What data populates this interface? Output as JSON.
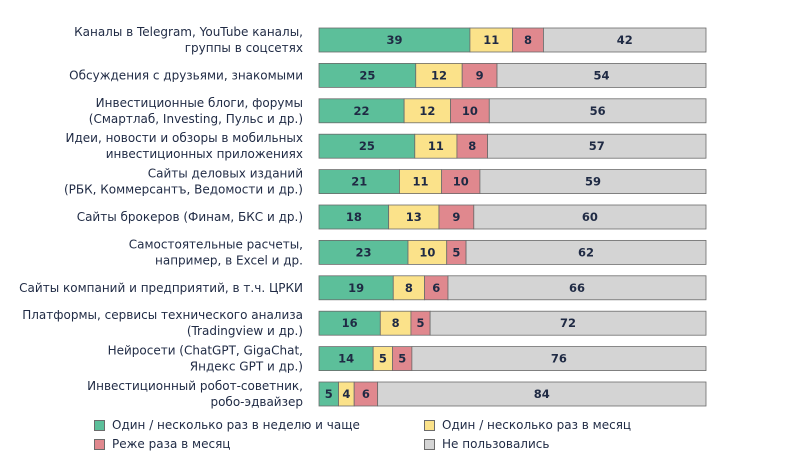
{
  "chart_data": {
    "type": "bar",
    "orientation": "horizontal",
    "stacked": true,
    "normalized": true,
    "categories": [
      [
        "Каналы в Telegram, YouTube каналы,",
        "группы в соцсетях"
      ],
      [
        "Обсуждения с друзьями, знакомыми"
      ],
      [
        "Инвестиционные блоги, форумы",
        "(Смартлаб, Investing, Пульс и др.)"
      ],
      [
        "Идеи, новости и обзоры в мобильных",
        "инвестиционных приложениях"
      ],
      [
        "Сайты деловых изданий",
        "(РБК, Коммерсантъ, Ведомости и др.)"
      ],
      [
        "Сайты брокеров (Финам, БКС и др.)"
      ],
      [
        "Самостоятельные расчеты,",
        "например, в Excel и др."
      ],
      [
        "Сайты компаний и предприятий, в т.ч. ЦРКИ"
      ],
      [
        "Платформы, сервисы технического анализа",
        "(Tradingview и др.)"
      ],
      [
        "Нейросети (ChatGPT, GigaChat,",
        "Яндекс GPT и др.)"
      ],
      [
        "Инвестиционный робот-советник,",
        "робо-эдвайзер"
      ]
    ],
    "series": [
      {
        "name": "Один / несколько раз в неделю и чаще",
        "color": "#5cbf9a",
        "values": [
          39,
          25,
          22,
          25,
          21,
          18,
          23,
          19,
          16,
          14,
          5
        ]
      },
      {
        "name": "Один / несколько раз в месяц",
        "color": "#fbe28a",
        "values": [
          11,
          12,
          12,
          11,
          11,
          13,
          10,
          8,
          8,
          5,
          4
        ]
      },
      {
        "name": "Реже раза в месяц",
        "color": "#e0888e",
        "values": [
          8,
          9,
          10,
          8,
          10,
          9,
          5,
          6,
          5,
          5,
          6
        ]
      },
      {
        "name": "Не пользовались",
        "color": "#d4d4d4",
        "values": [
          42,
          54,
          56,
          57,
          59,
          60,
          62,
          66,
          72,
          76,
          84
        ]
      }
    ],
    "xlim": [
      0,
      100
    ],
    "grid": false,
    "legend_position": "bottom",
    "title": "",
    "xlabel": "",
    "ylabel": ""
  }
}
